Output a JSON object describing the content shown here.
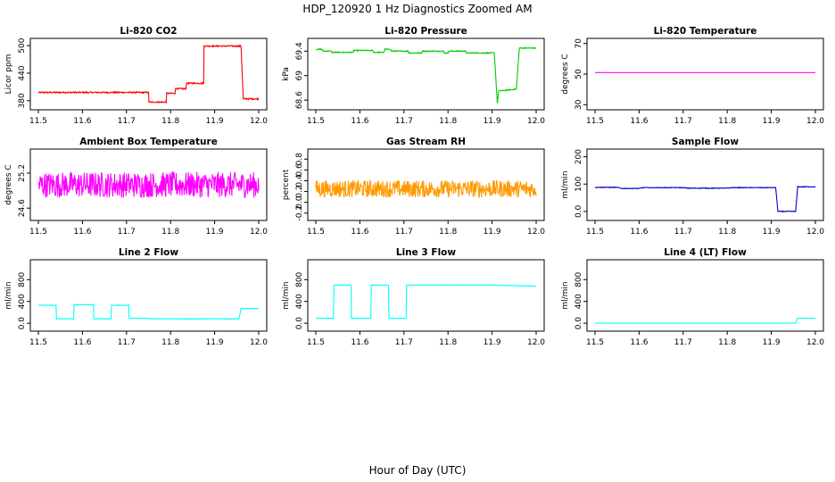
{
  "figure": {
    "title": "HDP_120920  1 Hz Diagnostics Zoomed AM",
    "xlabel": "Hour of Day (UTC)"
  },
  "chart_data": [
    {
      "type": "line",
      "title": "Li-820 CO2",
      "ylabel": "Licor ppm",
      "color": "#ff0000",
      "noise": 1.5,
      "xlim": [
        11.5,
        12.0
      ],
      "ylim": [
        368,
        508
      ],
      "xticks": [
        11.5,
        11.6,
        11.7,
        11.8,
        11.9,
        12.0
      ],
      "yticks": [
        380,
        440,
        500
      ],
      "x": [
        11.5,
        11.75,
        11.751,
        11.79,
        11.791,
        11.81,
        11.811,
        11.835,
        11.836,
        11.875,
        11.876,
        11.96,
        11.965,
        12.0
      ],
      "y": [
        398,
        398,
        377,
        377,
        396,
        396,
        406,
        406,
        418,
        418,
        499,
        499,
        384,
        384
      ]
    },
    {
      "type": "line",
      "title": "Li-820 Pressure",
      "ylabel": "kPa",
      "color": "#00cc00",
      "noise": 0.008,
      "xlim": [
        11.5,
        12.0
      ],
      "ylim": [
        68.5,
        69.55
      ],
      "xticks": [
        11.5,
        11.6,
        11.7,
        11.8,
        11.9,
        12.0
      ],
      "yticks": [
        68.6,
        69.0,
        69.4
      ],
      "x": [
        11.5,
        11.515,
        11.516,
        11.535,
        11.536,
        11.585,
        11.586,
        11.63,
        11.631,
        11.655,
        11.656,
        11.67,
        11.671,
        11.71,
        11.711,
        11.74,
        11.741,
        11.79,
        11.791,
        11.8,
        11.801,
        11.84,
        11.841,
        11.905,
        11.912,
        11.915,
        11.93,
        11.955,
        11.962,
        11.966,
        12.0
      ],
      "y": [
        69.43,
        69.43,
        69.4,
        69.4,
        69.38,
        69.38,
        69.41,
        69.41,
        69.38,
        69.38,
        69.43,
        69.43,
        69.4,
        69.4,
        69.37,
        69.37,
        69.4,
        69.4,
        69.37,
        69.37,
        69.4,
        69.4,
        69.37,
        69.37,
        68.55,
        68.75,
        68.76,
        68.78,
        69.45,
        69.45,
        69.45
      ]
    },
    {
      "type": "line",
      "title": "Li-820 Temperature",
      "ylabel": "degrees C",
      "color": "#ff00ff",
      "noise": 0,
      "xlim": [
        11.5,
        12.0
      ],
      "ylim": [
        29,
        71
      ],
      "xticks": [
        11.5,
        11.6,
        11.7,
        11.8,
        11.9,
        12.0
      ],
      "yticks": [
        30,
        50,
        70
      ],
      "x": [
        11.5,
        12.0
      ],
      "y": [
        51,
        51
      ]
    },
    {
      "type": "line",
      "title": "Ambient Box Temperature",
      "ylabel": "degrees C",
      "color": "#ff00ff",
      "noise": 0.22,
      "xlim": [
        11.5,
        12.0
      ],
      "ylim": [
        24.45,
        25.55
      ],
      "xticks": [
        11.5,
        11.6,
        11.7,
        11.8,
        11.9,
        12.0
      ],
      "yticks": [
        24.6,
        25.2
      ],
      "x": [
        11.5,
        12.0
      ],
      "y": [
        25.0,
        25.0
      ]
    },
    {
      "type": "line",
      "title": "Gas Stream RH",
      "ylabel": "percent",
      "color": "#ff9900",
      "noise": 0.16,
      "xlim": [
        11.5,
        12.0
      ],
      "ylim": [
        -0.27,
        0.92
      ],
      "xticks": [
        11.5,
        11.6,
        11.7,
        11.8,
        11.9,
        12.0
      ],
      "yticks": [
        -0.2,
        0.0,
        0.2,
        0.4,
        0.6,
        0.8
      ],
      "x": [
        11.5,
        12.0
      ],
      "y": [
        0.25,
        0.25
      ]
    },
    {
      "type": "line",
      "title": "Sample Flow",
      "ylabel": "ml/min",
      "color": "#0000cc",
      "noise": 1.2,
      "xlim": [
        11.5,
        12.0
      ],
      "ylim": [
        -20,
        215
      ],
      "xticks": [
        11.5,
        11.6,
        11.7,
        11.8,
        11.9,
        12.0
      ],
      "yticks": [
        0,
        100,
        200
      ],
      "x": [
        11.5,
        11.55,
        11.56,
        11.6,
        11.61,
        11.7,
        11.71,
        11.8,
        11.81,
        11.91,
        11.915,
        11.955,
        11.96,
        12.0
      ],
      "y": [
        88,
        88,
        84,
        84,
        87,
        87,
        85,
        85,
        87,
        87,
        0,
        0,
        90,
        90
      ]
    },
    {
      "type": "line",
      "title": "Line 2 Flow",
      "ylabel": "ml/min",
      "color": "#00ffff",
      "noise": 4,
      "xlim": [
        11.5,
        12.0
      ],
      "ylim": [
        -80,
        1100
      ],
      "xticks": [
        11.5,
        11.6,
        11.7,
        11.8,
        11.9,
        12.0
      ],
      "yticks": [
        0,
        400,
        800
      ],
      "x": [
        11.5,
        11.54,
        11.541,
        11.58,
        11.581,
        11.625,
        11.626,
        11.665,
        11.666,
        11.705,
        11.706,
        11.75,
        11.751,
        11.955,
        11.96,
        12.0
      ],
      "y": [
        330,
        330,
        80,
        80,
        340,
        340,
        80,
        80,
        330,
        330,
        90,
        90,
        80,
        80,
        270,
        270
      ]
    },
    {
      "type": "line",
      "title": "Line 3 Flow",
      "ylabel": "ml/min",
      "color": "#00ffff",
      "noise": 4,
      "xlim": [
        11.5,
        12.0
      ],
      "ylim": [
        -80,
        1100
      ],
      "xticks": [
        11.5,
        11.6,
        11.7,
        11.8,
        11.9,
        12.0
      ],
      "yticks": [
        0,
        400,
        800
      ],
      "x": [
        11.5,
        11.54,
        11.541,
        11.58,
        11.581,
        11.625,
        11.626,
        11.665,
        11.666,
        11.705,
        11.706,
        11.9,
        12.0
      ],
      "y": [
        90,
        90,
        700,
        700,
        90,
        90,
        700,
        700,
        90,
        90,
        700,
        700,
        680
      ]
    },
    {
      "type": "line",
      "title": "Line 4 (LT) Flow",
      "ylabel": "ml/min",
      "color": "#00ffff",
      "noise": 0,
      "xlim": [
        11.5,
        12.0
      ],
      "ylim": [
        -80,
        1100
      ],
      "xticks": [
        11.5,
        11.6,
        11.7,
        11.8,
        11.9,
        12.0
      ],
      "yticks": [
        0,
        400,
        800
      ],
      "x": [
        11.5,
        11.955,
        11.96,
        12.0
      ],
      "y": [
        0,
        0,
        90,
        90
      ]
    }
  ]
}
